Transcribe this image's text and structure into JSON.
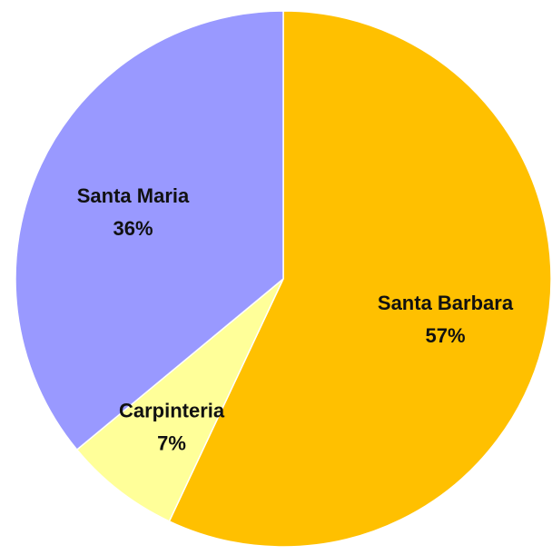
{
  "chart_data": {
    "type": "pie",
    "start_angle_deg": 0,
    "direction": "clockwise",
    "slices": [
      {
        "label": "Santa Barbara",
        "value": 57,
        "value_label": "57%",
        "color": "#FFC000"
      },
      {
        "label": "Carpinteria",
        "value": 7,
        "value_label": "7%",
        "color": "#FFFF99"
      },
      {
        "label": "Santa Maria",
        "value": 36,
        "value_label": "36%",
        "color": "#9999FF"
      }
    ],
    "border_color": "#ffffff"
  }
}
